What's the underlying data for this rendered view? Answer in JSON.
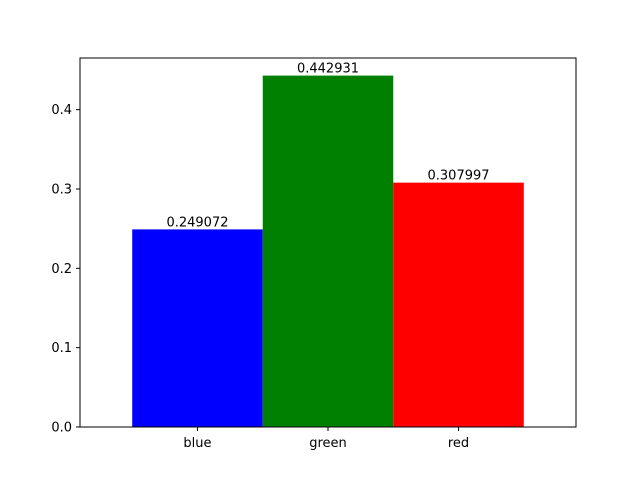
{
  "chart_data": {
    "type": "bar",
    "categories": [
      "blue",
      "green",
      "red"
    ],
    "values": [
      0.249072,
      0.442931,
      0.307997
    ],
    "data_labels": [
      "0.249072",
      "0.442931",
      "0.307997"
    ],
    "colors": [
      "#0000ff",
      "#008000",
      "#ff0000"
    ],
    "title": "",
    "xlabel": "",
    "ylabel": "",
    "ylim": [
      0,
      0.4651
    ],
    "yticks": [
      0.0,
      0.1,
      0.2,
      0.3,
      0.4
    ],
    "ytick_labels": [
      "0.0",
      "0.1",
      "0.2",
      "0.3",
      "0.4"
    ],
    "grid": false,
    "legend": "none"
  }
}
